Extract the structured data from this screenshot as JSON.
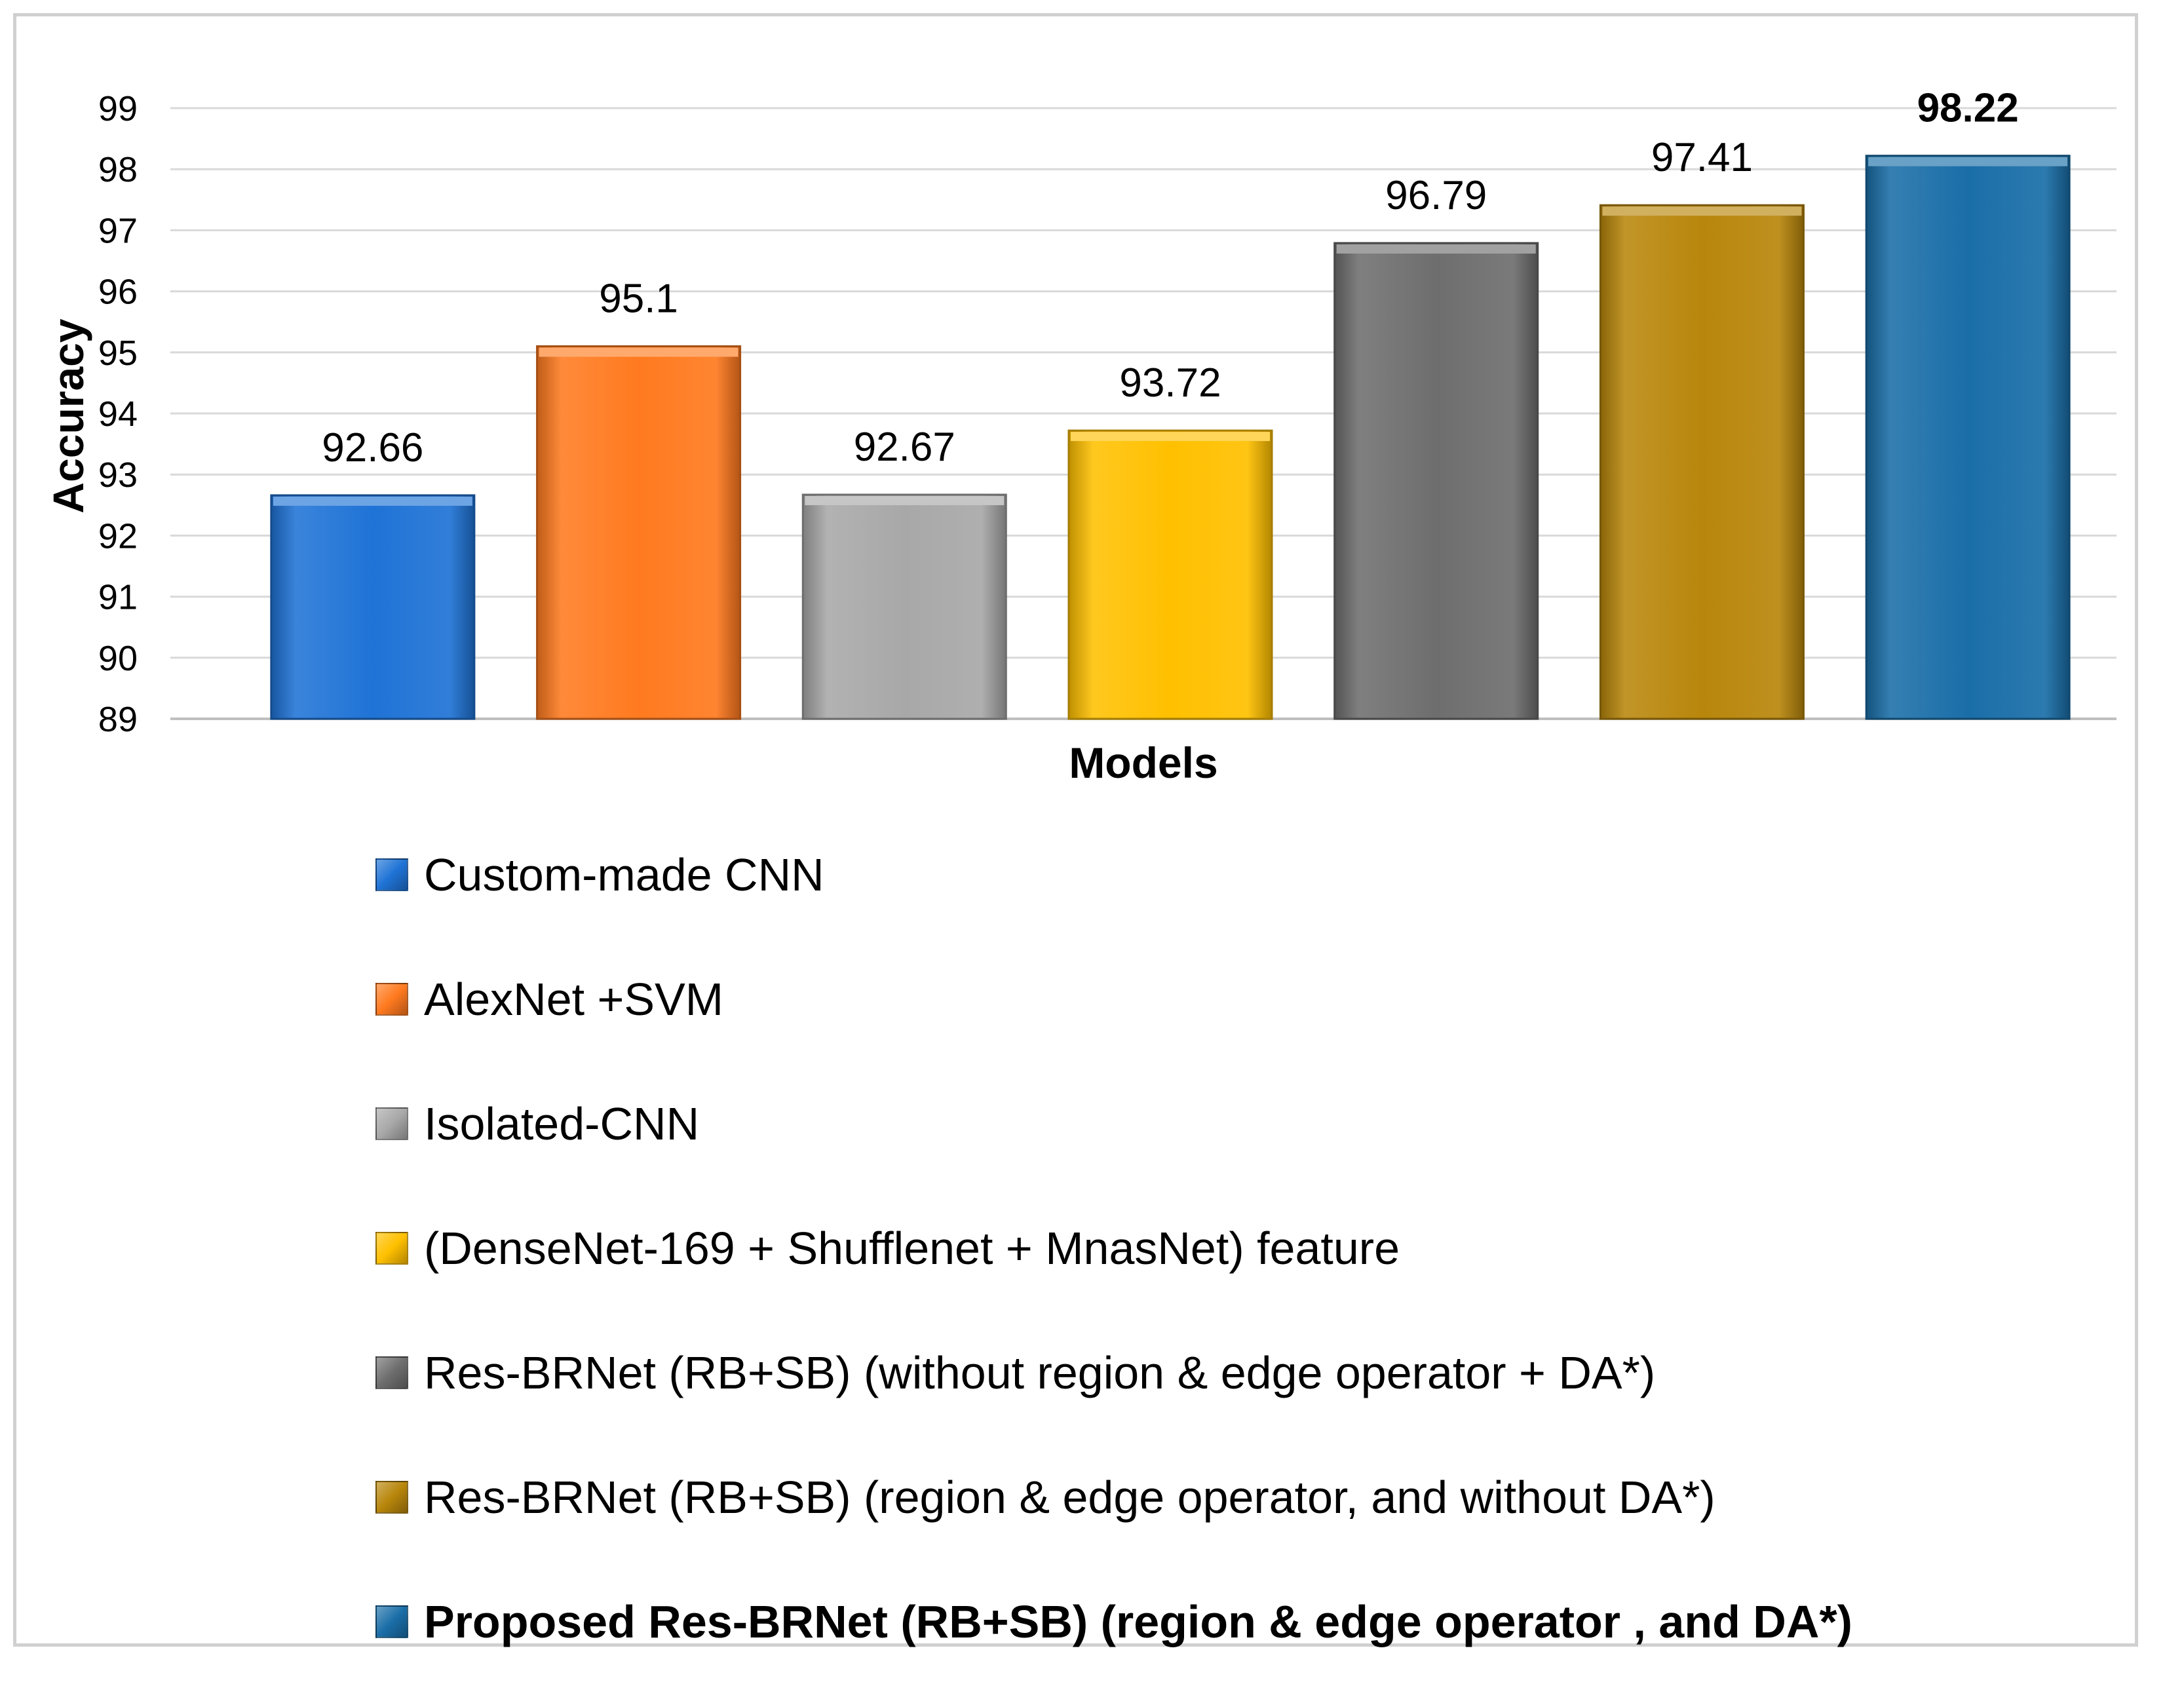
{
  "chart_data": {
    "type": "bar",
    "title": "",
    "xlabel": "Models",
    "ylabel": "Accuracy",
    "ylim": [
      89,
      99
    ],
    "yticks": [
      89,
      90,
      91,
      92,
      93,
      94,
      95,
      96,
      97,
      98,
      99
    ],
    "grid": true,
    "legend_position": "bottom",
    "categories": [
      "Custom-made CNN",
      "AlexNet +SVM",
      "Isolated-CNN",
      "(DenseNet-169 + Shufflenet + MnasNet) feature",
      "Res-BRNet (RB+SB) (without region & edge operator + DA*)",
      "Res-BRNet (RB+SB) (region & edge operator, and without DA*)",
      "Proposed Res-BRNet (RB+SB) (region & edge operator , and DA*)"
    ],
    "values": [
      92.66,
      95.1,
      92.67,
      93.72,
      96.79,
      97.41,
      98.22
    ],
    "data_labels": [
      "92.66",
      "95.1",
      "92.67",
      "93.72",
      "96.79",
      "97.41",
      "98.22"
    ],
    "highlighted": [
      false,
      false,
      false,
      false,
      false,
      false,
      true
    ],
    "colors": [
      "#1f73d6",
      "#ff7a1f",
      "#a8a8a8",
      "#ffc000",
      "#6e6e6e",
      "#b8860b",
      "#1a6ea8"
    ]
  }
}
